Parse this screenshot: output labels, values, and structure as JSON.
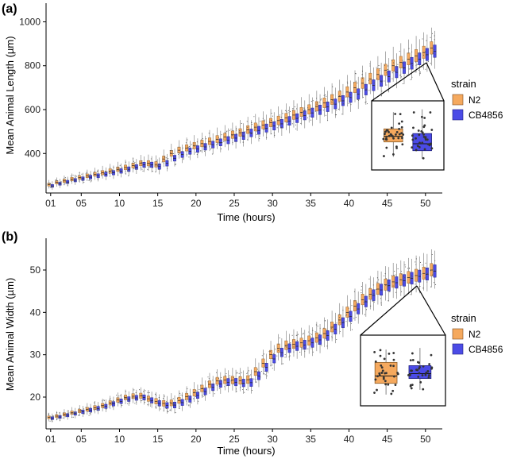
{
  "colors": {
    "N2": "#f5a95e",
    "CB4856": "#4b4be6",
    "axis": "#000000",
    "whisker": "#777777"
  },
  "chart_data": [
    {
      "type": "box",
      "panel_label": "(a)",
      "title": "",
      "xlabel": "Time (hours)",
      "ylabel": "Mean Animal Length (µm)",
      "xlim": [
        0.4,
        52.2
      ],
      "ylim": [
        220,
        1085
      ],
      "x_ticks": [
        1,
        5,
        10,
        15,
        20,
        25,
        30,
        35,
        40,
        45,
        50
      ],
      "x_tick_labels": [
        "01",
        "05",
        "10",
        "15",
        "20",
        "25",
        "30",
        "35",
        "40",
        "45",
        "50"
      ],
      "y_ticks": [
        400,
        600,
        800,
        1000
      ],
      "y_tick_labels": [
        "400",
        "600",
        "800",
        "1000"
      ],
      "legend": {
        "title": "strain",
        "placement": "right",
        "entries": [
          "N2",
          "CB4856"
        ]
      },
      "series_median_by_hour": {
        "N2": [
          258,
          268,
          275,
          283,
          290,
          298,
          305,
          312,
          320,
          328,
          336,
          345,
          355,
          355,
          350,
          375,
          400,
          415,
          425,
          435,
          445,
          455,
          465,
          475,
          485,
          495,
          508,
          520,
          530,
          540,
          550,
          562,
          575,
          588,
          600,
          614,
          630,
          645,
          660,
          680,
          700,
          720,
          740,
          760,
          780,
          800,
          815,
          830,
          845,
          860,
          880
        ],
        "CB4856": [
          252,
          262,
          270,
          278,
          285,
          292,
          298,
          305,
          312,
          320,
          328,
          338,
          348,
          348,
          340,
          355,
          378,
          395,
          410,
          420,
          430,
          440,
          450,
          460,
          470,
          480,
          493,
          505,
          515,
          525,
          535,
          548,
          560,
          573,
          585,
          598,
          612,
          625,
          640,
          655,
          670,
          690,
          710,
          730,
          750,
          770,
          790,
          810,
          830,
          850,
          865
        ]
      },
      "inset": {
        "time_hour": 48,
        "N2": {
          "q1": 425,
          "median": 455,
          "q3": 495,
          "min": 345,
          "max": 585
        },
        "CB4856": {
          "q1": 378,
          "median": 415,
          "q3": 470,
          "min": 335,
          "max": 600
        }
      }
    },
    {
      "type": "box",
      "panel_label": "(b)",
      "title": "",
      "xlabel": "Time (hours)",
      "ylabel": "Mean Animal Width (µm)",
      "xlim": [
        0.4,
        52.2
      ],
      "ylim": [
        12.5,
        57.5
      ],
      "x_ticks": [
        1,
        5,
        10,
        15,
        20,
        25,
        30,
        35,
        40,
        45,
        50
      ],
      "x_tick_labels": [
        "01",
        "05",
        "10",
        "15",
        "20",
        "25",
        "30",
        "35",
        "40",
        "45",
        "50"
      ],
      "y_ticks": [
        20,
        30,
        40,
        50
      ],
      "y_tick_labels": [
        "20",
        "30",
        "40",
        "50"
      ],
      "legend": {
        "title": "strain",
        "placement": "right",
        "entries": [
          "N2",
          "CB4856"
        ]
      },
      "series_median_by_hour": {
        "N2": [
          15.2,
          15.5,
          15.9,
          16.3,
          16.7,
          17.1,
          17.5,
          18.0,
          18.6,
          19.3,
          19.9,
          20.2,
          20.3,
          19.6,
          19.0,
          18.5,
          18.6,
          19.2,
          20.1,
          21.0,
          22.0,
          23.0,
          23.8,
          24.0,
          24.0,
          23.9,
          24.1,
          26.0,
          28.0,
          30.0,
          31.5,
          32.2,
          32.5,
          32.8,
          33.3,
          34.0,
          35.0,
          36.5,
          38.2,
          40.0,
          41.5,
          43.0,
          44.3,
          45.5,
          46.5,
          47.2,
          47.7,
          48.2,
          48.7,
          49.2,
          50.0
        ],
        "CB4856": [
          15.0,
          15.3,
          15.7,
          16.1,
          16.5,
          16.9,
          17.3,
          17.8,
          18.4,
          19.0,
          19.5,
          19.8,
          19.9,
          19.2,
          18.5,
          18.0,
          18.1,
          18.7,
          19.5,
          20.4,
          21.3,
          22.3,
          23.1,
          23.5,
          23.5,
          23.3,
          23.4,
          25.0,
          27.0,
          29.0,
          30.5,
          31.5,
          32.0,
          32.3,
          32.8,
          33.5,
          34.5,
          36.0,
          37.5,
          39.0,
          40.8,
          42.5,
          44.0,
          45.3,
          46.3,
          47.0,
          47.5,
          48.0,
          48.5,
          49.0,
          49.7
        ]
      },
      "inset": {
        "time_hour": 48,
        "N2": {
          "q1": 21.5,
          "median": 23.8,
          "q3": 28.0,
          "min": 18.0,
          "max": 32.0
        },
        "CB4856": {
          "q1": 23.0,
          "median": 24.5,
          "q3": 27.0,
          "min": 19.5,
          "max": 32.5
        }
      }
    }
  ]
}
